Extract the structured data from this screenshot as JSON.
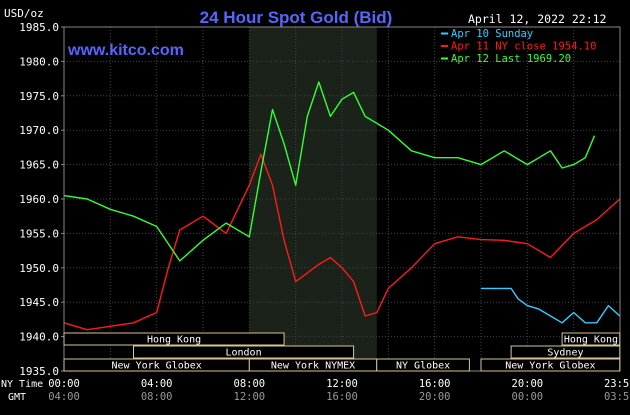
{
  "chart_data": {
    "type": "line",
    "title": "24 Hour Spot Gold (Bid)",
    "ylabel": "USD/oz",
    "website": "www.kitco.com",
    "timestamp": "April 12, 2022 22:12",
    "ylim": [
      1935.0,
      1985.0
    ],
    "y_ticks": [
      "1935.0",
      "1940.0",
      "1945.0",
      "1950.0",
      "1955.0",
      "1960.0",
      "1965.0",
      "1970.0",
      "1975.0",
      "1980.0",
      "1985.0"
    ],
    "x_label_top": "NY Time",
    "x_label_bottom": "GMT",
    "x_ticks_ny": [
      "00:00",
      "04:00",
      "08:00",
      "12:00",
      "16:00",
      "20:00",
      "23:59"
    ],
    "x_ticks_gmt": [
      "04:00",
      "08:00",
      "12:00",
      "16:00",
      "20:00",
      "00:00",
      "03:59"
    ],
    "legend_position": "top-right",
    "series": [
      {
        "name": "Apr 10 Sunday",
        "color": "#33ccff",
        "x_hours": [
          18.0,
          19.3,
          19.6,
          20.0,
          20.5,
          21.0,
          21.5,
          22.0,
          22.5,
          23.0,
          23.5,
          23.99
        ],
        "values": [
          1947.0,
          1947.0,
          1945.5,
          1944.5,
          1944.0,
          1943.0,
          1942.0,
          1943.5,
          1942.0,
          1942.0,
          1944.5,
          1943.0
        ]
      },
      {
        "name": "Apr 11 NY close 1954.10",
        "color": "#ff1a1a",
        "x_hours": [
          0.0,
          1.0,
          2.0,
          3.0,
          4.0,
          4.5,
          5.0,
          6.0,
          7.0,
          8.0,
          8.5,
          9.0,
          9.5,
          10.0,
          11.0,
          11.5,
          12.0,
          12.5,
          13.0,
          13.5,
          14.0,
          15.0,
          16.0,
          17.0,
          18.0,
          19.0,
          20.0,
          21.0,
          22.0,
          23.0,
          23.99
        ],
        "values": [
          1942.0,
          1941.0,
          1941.5,
          1942.0,
          1943.5,
          1950.0,
          1955.5,
          1957.5,
          1955.0,
          1962.0,
          1966.5,
          1962.0,
          1954.0,
          1948.0,
          1950.5,
          1951.5,
          1950.0,
          1948.0,
          1943.0,
          1943.5,
          1947.0,
          1950.0,
          1953.5,
          1954.5,
          1954.1,
          1954.0,
          1953.5,
          1951.5,
          1955.0,
          1957.0,
          1960.0
        ]
      },
      {
        "name": "Apr 12 Last 1969.20",
        "color": "#33ff33",
        "x_hours": [
          0.0,
          1.0,
          2.0,
          3.0,
          4.0,
          5.0,
          6.0,
          7.0,
          8.0,
          8.5,
          9.0,
          9.5,
          10.0,
          10.5,
          11.0,
          11.5,
          12.0,
          12.5,
          13.0,
          14.0,
          15.0,
          16.0,
          17.0,
          18.0,
          19.0,
          20.0,
          21.0,
          21.5,
          22.0,
          22.5,
          22.9
        ],
        "values": [
          1960.5,
          1960.0,
          1958.5,
          1957.5,
          1956.0,
          1951.0,
          1954.0,
          1956.5,
          1954.5,
          1964.0,
          1973.0,
          1968.0,
          1962.0,
          1972.0,
          1977.0,
          1972.0,
          1974.5,
          1975.5,
          1972.0,
          1970.0,
          1967.0,
          1966.0,
          1966.0,
          1965.0,
          1967.0,
          1965.0,
          1967.0,
          1964.5,
          1965.0,
          1966.0,
          1969.2
        ]
      }
    ],
    "sessions": [
      {
        "label": "Hong Kong",
        "row": 0,
        "start": 0.0,
        "end": 9.5
      },
      {
        "label": "London",
        "row": 1,
        "start": 3.0,
        "end": 12.5
      },
      {
        "label": "New York Globex",
        "row": 2,
        "start": 0.0,
        "end": 8.0
      },
      {
        "label": "New York NYMEX",
        "row": 2,
        "start": 8.0,
        "end": 13.5
      },
      {
        "label": "NY Globex",
        "row": 2,
        "start": 13.5,
        "end": 17.5
      },
      {
        "label": "Hong Kong",
        "row": 0,
        "start": 21.5,
        "end": 23.99
      },
      {
        "label": "Sydney",
        "row": 1,
        "start": 19.3,
        "end": 23.99
      },
      {
        "label": "New York Globex",
        "row": 2,
        "start": 18.0,
        "end": 23.99
      }
    ],
    "shaded_region": {
      "start": 8.0,
      "end": 13.5
    }
  }
}
